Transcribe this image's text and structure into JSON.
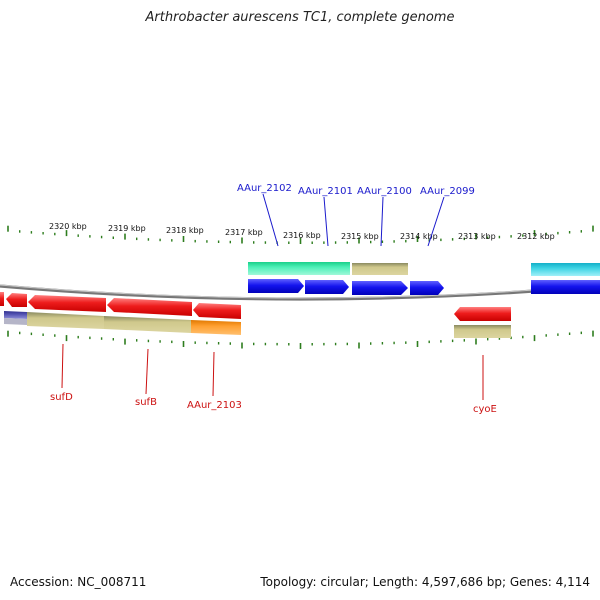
{
  "title": "Arthrobacter aurescens TC1, complete genome",
  "footer": {
    "accession": "Accession: NC_008711",
    "summary": "Topology: circular; Length: 4,597,686 bp; Genes: 4,114"
  },
  "colors": {
    "backbone": "#888888",
    "tick": "#2e7d1e",
    "label_top": "#1a1acc",
    "label_bottom": "#cc1111",
    "red_gene": "#ee1c1c",
    "blue_gene": "#1414ee",
    "tan_feature": "#c7bf7f",
    "green_feature": "#2ee8a8",
    "cyan_feature": "#25c6d6",
    "orange_feature": "#ff9b20",
    "purple_feature": "#5c5cb8"
  },
  "kbp_labels": [
    "2320 kbp",
    "2319 kbp",
    "2318 kbp",
    "2317 kbp",
    "2316 kbp",
    "2315 kbp",
    "2314 kbp",
    "2313 kbp",
    "2312 kbp"
  ],
  "top_labels": [
    "AAur_2102",
    "AAur_2101",
    "AAur_2100",
    "AAur_2099"
  ],
  "bottom_labels": [
    "sufD",
    "sufB",
    "AAur_2103",
    "cyoE"
  ]
}
